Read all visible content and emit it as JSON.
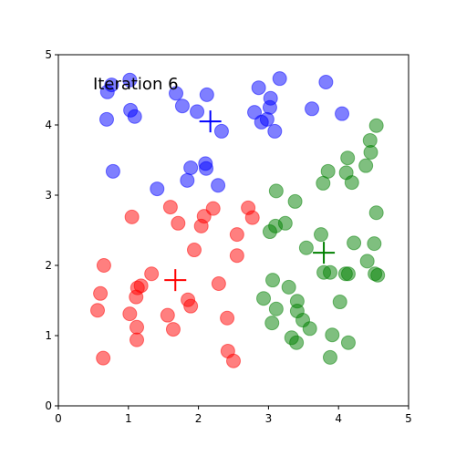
{
  "chart_data": {
    "type": "scatter",
    "title": "Iteration 6",
    "xlim": [
      0,
      5
    ],
    "ylim": [
      0,
      5
    ],
    "xticks": [
      0,
      1,
      2,
      3,
      4,
      5
    ],
    "yticks": [
      0,
      1,
      2,
      3,
      4,
      5
    ],
    "grid": false,
    "series": [
      {
        "color": "blue",
        "x": [
          1.02,
          0.76,
          0.7,
          1.03,
          1.09,
          0.69,
          1.68,
          2.12,
          1.77,
          1.98,
          2.33,
          2.86,
          3.16,
          3.03,
          3.02,
          2.8,
          2.9,
          2.98,
          3.09,
          3.62,
          3.82,
          4.05,
          0.78,
          1.41,
          1.89,
          2.1,
          2.11,
          1.84,
          2.28
        ],
        "y": [
          4.64,
          4.57,
          4.47,
          4.21,
          4.12,
          4.08,
          4.45,
          4.43,
          4.27,
          4.19,
          3.91,
          4.53,
          4.66,
          4.38,
          4.25,
          4.18,
          4.04,
          4.08,
          3.91,
          4.23,
          4.61,
          4.16,
          3.34,
          3.09,
          3.39,
          3.45,
          3.38,
          3.21,
          3.14
        ],
        "centroid": [
          2.17,
          4.05
        ]
      },
      {
        "color": "red",
        "x": [
          1.6,
          1.05,
          1.71,
          2.08,
          2.04,
          2.21,
          2.71,
          2.77,
          2.55,
          2.55,
          1.94,
          0.65,
          1.33,
          1.18,
          1.13,
          1.11,
          0.6,
          0.56,
          1.02,
          1.56,
          1.85,
          1.89,
          2.29,
          2.41,
          1.12,
          1.12,
          1.64,
          0.64,
          2.42,
          2.5
        ],
        "y": [
          2.83,
          2.69,
          2.6,
          2.7,
          2.56,
          2.81,
          2.82,
          2.68,
          2.44,
          2.14,
          2.22,
          2.0,
          1.88,
          1.71,
          1.68,
          1.55,
          1.6,
          1.36,
          1.31,
          1.29,
          1.51,
          1.42,
          1.74,
          1.25,
          1.12,
          0.94,
          1.09,
          0.68,
          0.78,
          0.64
        ],
        "centroid": [
          1.67,
          1.79
        ]
      },
      {
        "color": "green",
        "x": [
          4.54,
          4.45,
          4.46,
          4.13,
          4.39,
          3.85,
          4.11,
          3.78,
          4.19,
          3.11,
          3.38,
          4.54,
          3.24,
          3.1,
          3.02,
          3.75,
          3.54,
          4.22,
          4.51,
          4.41,
          3.79,
          3.88,
          4.1,
          4.14,
          4.52,
          4.56,
          3.06,
          3.29,
          2.93,
          3.41,
          3.41,
          3.11,
          3.49,
          3.05,
          3.59,
          4.02,
          3.91,
          3.33,
          3.4,
          4.14,
          3.88
        ],
        "y": [
          3.99,
          3.78,
          3.61,
          3.53,
          3.42,
          3.34,
          3.32,
          3.17,
          3.18,
          3.06,
          2.91,
          2.75,
          2.6,
          2.56,
          2.48,
          2.44,
          2.25,
          2.32,
          2.31,
          2.06,
          1.9,
          1.9,
          1.88,
          1.88,
          1.88,
          1.86,
          1.79,
          1.69,
          1.53,
          1.49,
          1.35,
          1.38,
          1.22,
          1.18,
          1.1,
          1.48,
          1.01,
          0.97,
          0.9,
          0.9,
          0.69
        ],
        "centroid": [
          3.79,
          2.18
        ]
      }
    ]
  }
}
